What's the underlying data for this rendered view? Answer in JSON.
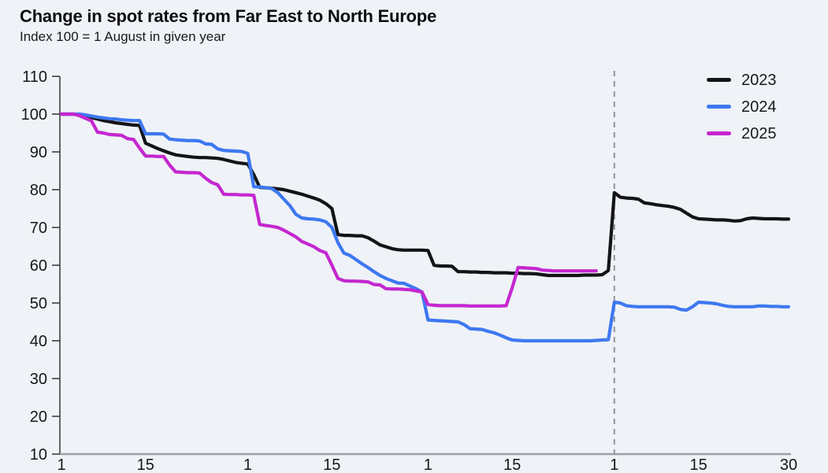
{
  "header": {
    "title": "Change in spot rates from Far East to North Europe",
    "subtitle": "Index 100 = 1 August in given year"
  },
  "legend": [
    {
      "label": "2023",
      "color": "#141418"
    },
    {
      "label": "2024",
      "color": "#3e78f0"
    },
    {
      "label": "2025",
      "color": "#c427cf"
    }
  ],
  "chart_data": {
    "type": "line",
    "title": "Change in spot rates from Far East to North Europe",
    "subtitle": "Index 100 = 1 August in given year",
    "x_axis": {
      "unit": "days since 1 August",
      "day_max": 121,
      "ticks": [
        {
          "day": 0,
          "label": "1"
        },
        {
          "day": 14,
          "label": "15"
        },
        {
          "day": 31,
          "label": "1"
        },
        {
          "day": 45,
          "label": "15"
        },
        {
          "day": 61,
          "label": "1"
        },
        {
          "day": 75,
          "label": "15"
        },
        {
          "day": 92,
          "label": "1"
        },
        {
          "day": 106,
          "label": "15"
        },
        {
          "day": 121,
          "label": "30"
        }
      ]
    },
    "y_axis": {
      "min": 10,
      "max": 110,
      "tick_step": 10
    },
    "annotations": {
      "dashed_vline_day": 92
    },
    "grid": false,
    "legend_position": "top-right",
    "series": [
      {
        "name": "2023",
        "color": "#141418",
        "start_day": 0,
        "values": [
          100,
          100,
          100,
          99.8,
          99.5,
          99.1,
          98.7,
          98.3,
          98,
          97.7,
          97.5,
          97.3,
          97.1,
          97,
          92.3,
          91.6,
          90.9,
          90.3,
          89.7,
          89.2,
          89,
          88.8,
          88.6,
          88.5,
          88.5,
          88.4,
          88.3,
          88,
          87.6,
          87.2,
          87,
          86.8,
          84,
          80.6,
          80.5,
          80.4,
          80.2,
          80,
          79.6,
          79.2,
          78.8,
          78.3,
          77.8,
          77.2,
          76.3,
          75,
          68.1,
          67.9,
          67.9,
          67.8,
          67.8,
          67.3,
          66.4,
          65.4,
          64.9,
          64.4,
          64.1,
          64,
          64,
          64,
          64,
          63.9,
          60,
          59.8,
          59.8,
          59.7,
          58.3,
          58.3,
          58.2,
          58.2,
          58.1,
          58.1,
          58,
          58,
          58,
          57.9,
          57.9,
          57.8,
          57.8,
          57.7,
          57.5,
          57.3,
          57.3,
          57.3,
          57.3,
          57.3,
          57.3,
          57.4,
          57.4,
          57.4,
          57.5,
          58.6,
          79.2,
          78,
          77.8,
          77.7,
          77.5,
          76.5,
          76.3,
          76,
          75.8,
          75.6,
          75.3,
          74.8,
          73.8,
          72.8,
          72.3,
          72.2,
          72.1,
          72,
          72,
          71.9,
          71.7,
          71.8,
          72.3,
          72.5,
          72.4,
          72.3,
          72.3,
          72.3,
          72.2,
          72.2
        ]
      },
      {
        "name": "2024",
        "color": "#3e78f0",
        "start_day": 0,
        "values": [
          100,
          100,
          100,
          100,
          99.8,
          99.5,
          99.2,
          99,
          98.8,
          98.7,
          98.5,
          98.4,
          98.3,
          98.3,
          94.8,
          94.8,
          94.8,
          94.7,
          93.4,
          93.2,
          93.1,
          93,
          93,
          92.9,
          92.1,
          92,
          90.8,
          90.4,
          90.3,
          90.2,
          90.1,
          89.6,
          80.8,
          80.7,
          80.5,
          80.3,
          79.2,
          77.5,
          75.8,
          73.5,
          72.5,
          72.3,
          72.2,
          72,
          71.5,
          70,
          66,
          63.2,
          62.6,
          61.5,
          60.4,
          59.4,
          58.3,
          57.3,
          56.5,
          55.9,
          55.3,
          55.2,
          54.5,
          53.8,
          52.9,
          45.5,
          45.4,
          45.3,
          45.2,
          45.1,
          45,
          44.3,
          43.2,
          43.1,
          43,
          42.5,
          42.1,
          41.5,
          40.8,
          40.2,
          40.1,
          40,
          40,
          40,
          40,
          40,
          40,
          40,
          40,
          40,
          40,
          40,
          40,
          40.1,
          40.2,
          40.3,
          50.2,
          50,
          49.3,
          49.1,
          49,
          49,
          49,
          49,
          49,
          49,
          48.9,
          48.3,
          48.1,
          49,
          50.2,
          50.1,
          50,
          49.8,
          49.4,
          49.1,
          49,
          49,
          49,
          49,
          49.2,
          49.2,
          49.1,
          49.1,
          49,
          49
        ]
      },
      {
        "name": "2025",
        "color": "#c427cf",
        "start_day": 0,
        "values": [
          100,
          100,
          100,
          99.6,
          98.9,
          98.2,
          95.2,
          95,
          94.6,
          94.5,
          94.4,
          93.5,
          93.3,
          91,
          88.9,
          88.9,
          88.8,
          88.8,
          86.5,
          84.7,
          84.6,
          84.5,
          84.5,
          84.4,
          83,
          81.9,
          81.3,
          78.8,
          78.7,
          78.7,
          78.6,
          78.6,
          78.5,
          70.8,
          70.5,
          70.3,
          70,
          69.3,
          68.4,
          67.5,
          66.3,
          65.6,
          64.9,
          63.9,
          63.3,
          60,
          56.5,
          55.9,
          55.8,
          55.8,
          55.7,
          55.6,
          54.9,
          54.8,
          53.8,
          53.7,
          53.7,
          53.6,
          53.5,
          53.2,
          52.9,
          49.6,
          49.4,
          49.3,
          49.3,
          49.3,
          49.3,
          49.3,
          49.2,
          49.2,
          49.2,
          49.2,
          49.2,
          49.2,
          49.3,
          54,
          59.4,
          59.3,
          59.2,
          59.1,
          58.7,
          58.6,
          58.5,
          58.5,
          58.5,
          58.5,
          58.5,
          58.5,
          58.5,
          58.5
        ]
      }
    ]
  },
  "colors": {
    "background": "#eff2f7",
    "axis_y_line": "#3c4043",
    "axis_x_line": "#9aa3ab",
    "dashed_line": "#8f959b",
    "text": "#15171c"
  }
}
